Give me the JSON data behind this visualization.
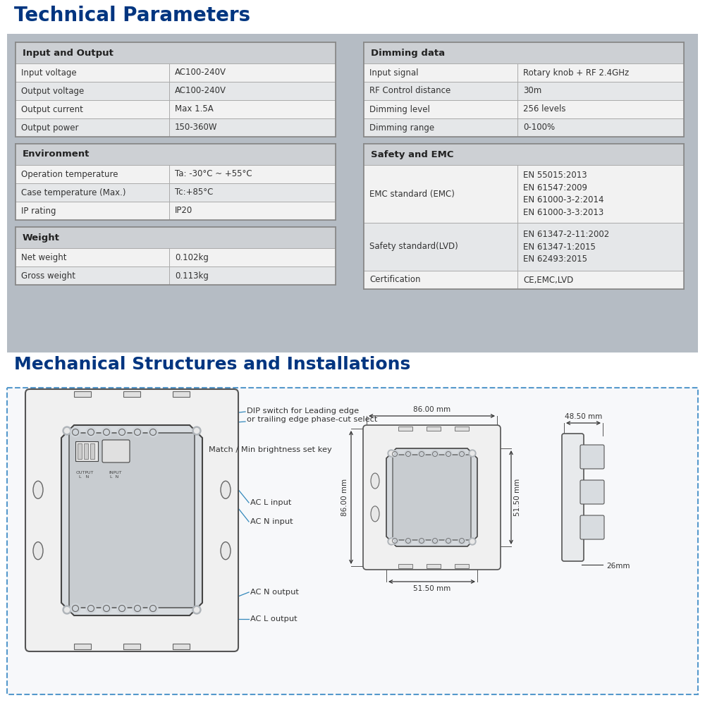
{
  "title1": "Technical Parameters",
  "title2": "Mechanical Structures and Installations",
  "title_color": "#003580",
  "bg_color": "#ffffff",
  "panel_bg": "#b5bcc4",
  "io_table": {
    "header": "Input and Output",
    "rows": [
      [
        "Input voltage",
        "AC100-240V"
      ],
      [
        "Output voltage",
        "AC100-240V"
      ],
      [
        "Output current",
        "Max 1.5A"
      ],
      [
        "Output power",
        "150-360W"
      ]
    ]
  },
  "env_table": {
    "header": "Environment",
    "rows": [
      [
        "Operation temperature",
        "Ta: -30°C ~ +55°C"
      ],
      [
        "Case temperature (Max.)",
        "Tc:+85°C"
      ],
      [
        "IP rating",
        "IP20"
      ]
    ]
  },
  "weight_table": {
    "header": "Weight",
    "rows": [
      [
        "Net weight",
        "0.102kg"
      ],
      [
        "Gross weight",
        "0.113kg"
      ]
    ]
  },
  "dimming_table": {
    "header": "Dimming data",
    "rows": [
      [
        "Input signal",
        "Rotary knob + RF 2.4GHz"
      ],
      [
        "RF Control distance",
        "30m"
      ],
      [
        "Dimming level",
        "256 levels"
      ],
      [
        "Dimming range",
        "0-100%"
      ]
    ]
  },
  "safety_table": {
    "header": "Safety and EMC",
    "rows": [
      [
        "EMC standard (EMC)",
        "EN 55015:2013\nEN 61547:2009\nEN 61000-3-2:2014\nEN 61000-3-3:2013"
      ],
      [
        "Safety standard(LVD)",
        "EN 61347-2-11:2002\nEN 61347-1:2015\nEN 62493:2015"
      ],
      [
        "Certification",
        "CE,EMC,LVD"
      ]
    ]
  },
  "dim_labels": {
    "top_w": "86.00 mm",
    "side_w": "48.50 mm",
    "left_h": "86.00 mm",
    "inner_h": "51.50 mm",
    "bottom_w": "51.50 mm",
    "depth": "26mm"
  }
}
